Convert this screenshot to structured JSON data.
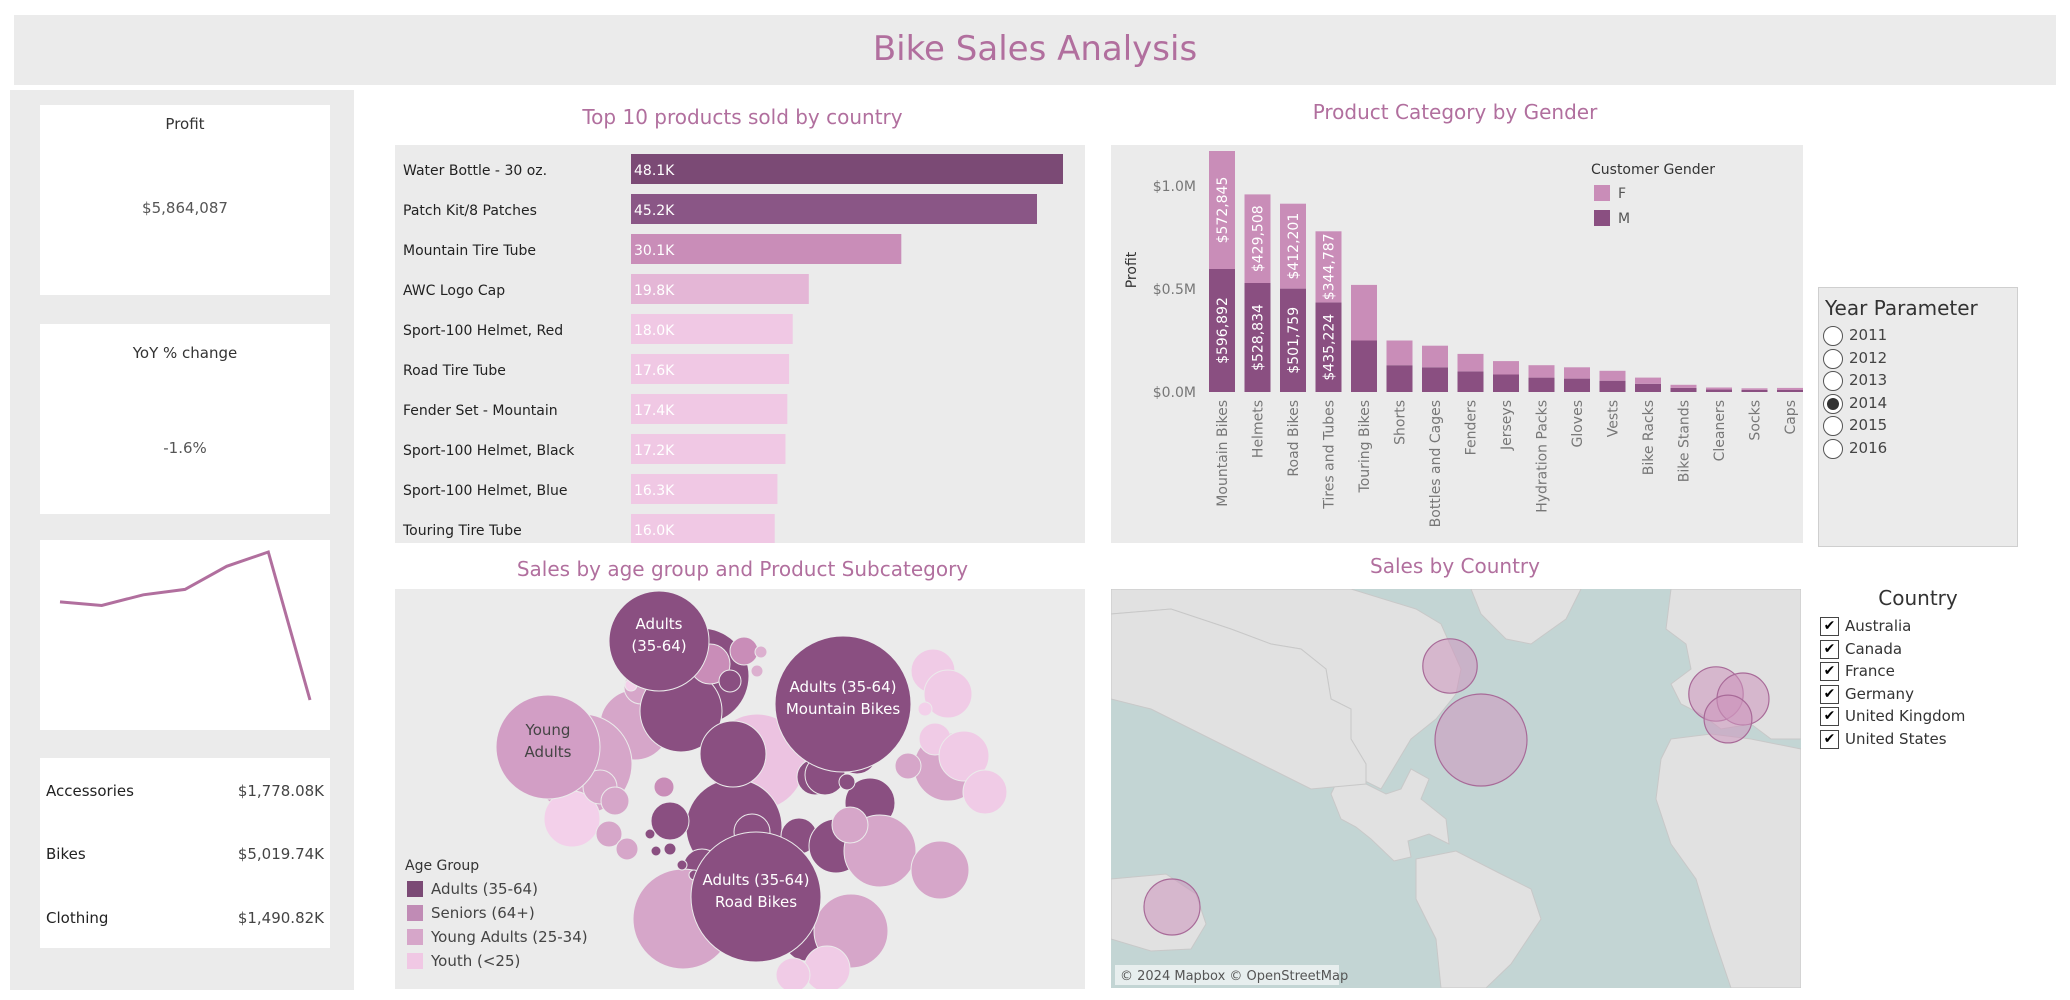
{
  "header": {
    "title": "Bike Sales Analysis"
  },
  "kpis": {
    "profit": {
      "title": "Profit",
      "value": "$5,864,087"
    },
    "yoy": {
      "title": "YoY % change",
      "value": "-1.6%"
    }
  },
  "trend": {
    "values": [
      100,
      98,
      104,
      107,
      120,
      128,
      45
    ]
  },
  "categories": [
    {
      "name": "Accessories",
      "value": "$1,778.08K"
    },
    {
      "name": "Bikes",
      "value": "$5,019.74K"
    },
    {
      "name": "Clothing",
      "value": "$1,490.82K"
    }
  ],
  "year_parameter": {
    "title": "Year Parameter",
    "options": [
      "2011",
      "2012",
      "2013",
      "2014",
      "2015",
      "2016"
    ],
    "selected": "2014"
  },
  "country_filter": {
    "title": "Country",
    "options": [
      "Australia",
      "Canada",
      "France",
      "Germany",
      "United Kingdom",
      "United States"
    ]
  },
  "colors": {
    "accent": "#b16f9e",
    "dark": "#8a4f81",
    "darkest": "#7b4a75",
    "mid": "#c98db8",
    "light": "#e4b6d6",
    "lightest": "#f0c8e4",
    "panel": "#ebebeb"
  },
  "chart_data": [
    {
      "type": "bar",
      "title": "Top 10 products sold by country",
      "orientation": "horizontal",
      "categories": [
        "Water Bottle - 30 oz.",
        "Patch Kit/8 Patches",
        "Mountain Tire Tube",
        "AWC Logo Cap",
        "Sport-100 Helmet, Red",
        "Road Tire Tube",
        "Fender Set - Mountain",
        "Sport-100 Helmet, Black",
        "Sport-100 Helmet, Blue",
        "Touring Tire Tube"
      ],
      "values": [
        48.1,
        45.2,
        30.1,
        19.8,
        18.0,
        17.6,
        17.4,
        17.2,
        16.3,
        16.0
      ],
      "labels": [
        "48.1K",
        "45.2K",
        "30.1K",
        "19.8K",
        "18.0K",
        "17.6K",
        "17.4K",
        "17.2K",
        "16.3K",
        "16.0K"
      ]
    },
    {
      "type": "bar",
      "stacked": true,
      "title": "Product Category by Gender",
      "ylabel": "Profit",
      "yticks": [
        "$0.0M",
        "$0.5M",
        "$1.0M"
      ],
      "ytick_values": [
        0,
        0.5,
        1.0
      ],
      "ylim": [
        0,
        1.2
      ],
      "legend": {
        "title": "Customer Gender",
        "placement": "top-right"
      },
      "categories": [
        "Mountain Bikes",
        "Helmets",
        "Road Bikes",
        "Tires and Tubes",
        "Touring Bikes",
        "Shorts",
        "Bottles and Cages",
        "Fenders",
        "Jerseys",
        "Hydration Packs",
        "Gloves",
        "Vests",
        "Bike Racks",
        "Bike Stands",
        "Cleaners",
        "Socks",
        "Caps"
      ],
      "series": [
        {
          "name": "M",
          "values": [
            0.597,
            0.529,
            0.502,
            0.435,
            0.25,
            0.13,
            0.12,
            0.1,
            0.085,
            0.07,
            0.065,
            0.055,
            0.04,
            0.02,
            0.012,
            0.01,
            0.01
          ],
          "labels": [
            "$596,892",
            "$528,834",
            "$501,759",
            "$435,224",
            "",
            "",
            "",
            "",
            "",
            "",
            "",
            "",
            "",
            "",
            "",
            "",
            ""
          ]
        },
        {
          "name": "F",
          "values": [
            0.573,
            0.43,
            0.412,
            0.345,
            0.27,
            0.12,
            0.105,
            0.085,
            0.065,
            0.06,
            0.055,
            0.048,
            0.03,
            0.015,
            0.01,
            0.008,
            0.01
          ],
          "labels": [
            "$572,845",
            "$429,508",
            "$412,201",
            "$344,787",
            "",
            "",
            "",
            "",
            "",
            "",
            "",
            "",
            "",
            "",
            "",
            "",
            ""
          ]
        }
      ]
    },
    {
      "type": "bubble",
      "title": "Sales by age group and Product Subcategory",
      "legend": {
        "title": "Age Group",
        "entries": [
          "Adults (35-64)",
          "Seniors (64+)",
          "Young Adults (25-34)",
          "Youth (<25)"
        ]
      },
      "bubble_labels": [
        "Adults (35-64)",
        "Adults (35-64) Mountain Bikes",
        "Young Adults",
        "Adults (35-64) Road Bikes"
      ]
    },
    {
      "type": "map",
      "title": "Sales by Country",
      "attribution": "© 2024 Mapbox © OpenStreetMap",
      "points": [
        {
          "country": "Canada",
          "size": 0.35
        },
        {
          "country": "United States",
          "size": 1.0
        },
        {
          "country": "United Kingdom",
          "size": 0.35
        },
        {
          "country": "Germany",
          "size": 0.32
        },
        {
          "country": "France",
          "size": 0.27
        },
        {
          "country": "Australia",
          "size": 0.37
        }
      ]
    }
  ]
}
